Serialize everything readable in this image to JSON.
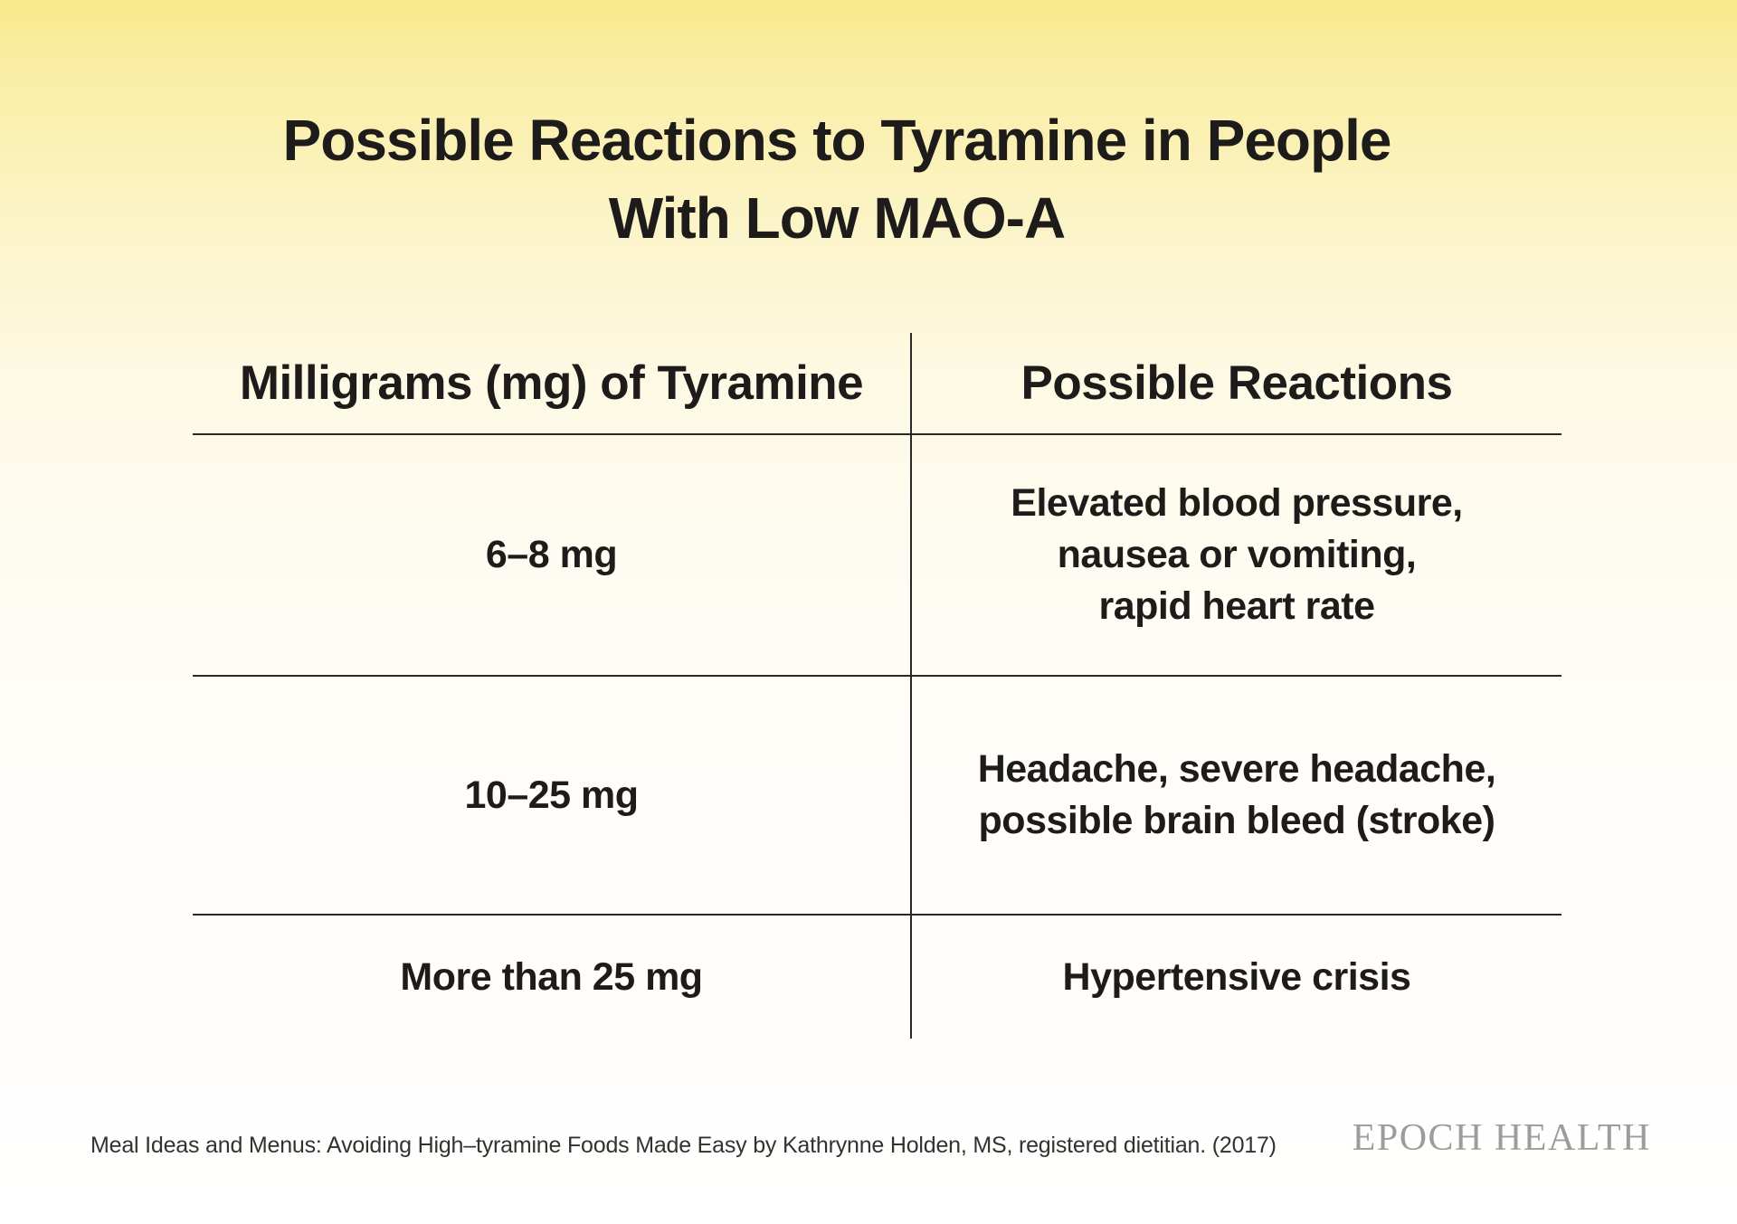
{
  "title": {
    "line1": "Possible Reactions to Tyramine in People",
    "line2": "With Low MAO-A"
  },
  "table": {
    "headers": {
      "dose": "Milligrams (mg) of Tyramine",
      "reaction": "Possible Reactions"
    },
    "rows": [
      {
        "dose": "6–8 mg",
        "reaction_lines": [
          "Elevated blood pressure,",
          "nausea or vomiting,",
          "rapid heart rate"
        ]
      },
      {
        "dose": "10–25 mg",
        "reaction_lines": [
          "Headache, severe headache,",
          "possible brain bleed (stroke)"
        ]
      },
      {
        "dose": "More than 25 mg",
        "reaction_lines": [
          "Hypertensive crisis"
        ]
      }
    ]
  },
  "footer": {
    "source": "Meal Ideas and Menus: Avoiding High–tyramine Foods Made Easy by Kathrynne Holden, MS, registered dietitian. (2017)",
    "brand": "EPOCH HEALTH"
  },
  "colors": {
    "background_top": "#f8e989",
    "background_bottom": "#ffffff",
    "text": "#1d1c1a",
    "rule": "#2a2927",
    "brand_gray": "#9c9c9a"
  },
  "chart_data": {
    "type": "table",
    "title": "Possible Reactions to Tyramine in People With Low MAO-A",
    "columns": [
      "Milligrams (mg) of Tyramine",
      "Possible Reactions"
    ],
    "rows": [
      [
        "6–8 mg",
        "Elevated blood pressure, nausea or vomiting, rapid heart rate"
      ],
      [
        "10–25 mg",
        "Headache, severe headache, possible brain bleed (stroke)"
      ],
      [
        "More than 25 mg",
        "Hypertensive crisis"
      ]
    ],
    "source": "Meal Ideas and Menus: Avoiding High–tyramine Foods Made Easy by Kathrynne Holden, MS, registered dietitian. (2017)",
    "layout": {
      "grid": "row separators + single vertical divider",
      "legend": "none"
    }
  }
}
